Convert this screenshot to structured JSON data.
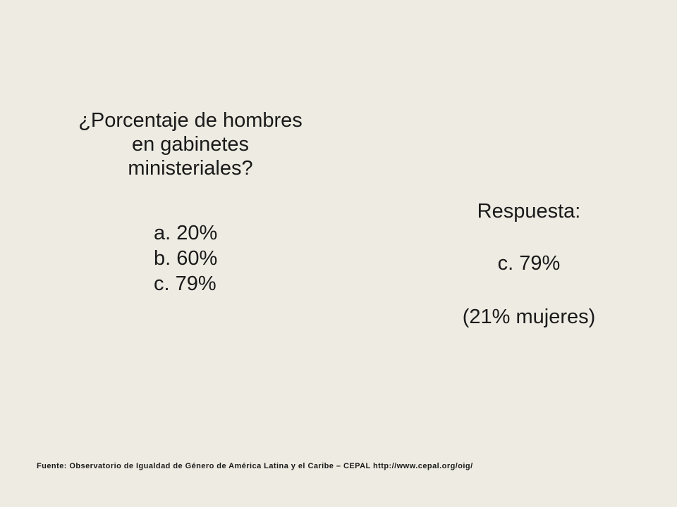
{
  "question": {
    "line1": "¿Porcentaje de hombres",
    "line2": "en gabinetes",
    "line3": "ministeriales?"
  },
  "options": [
    "a. 20%",
    "b. 60%",
    "c. 79%"
  ],
  "answer": {
    "label": "Respuesta:",
    "value": "c. 79%",
    "note": "(21% mujeres)"
  },
  "source": "Fuente: Observatorio de Igualdad de Género de América Latina y el Caribe – CEPAL http://www.cepal.org/oig/"
}
